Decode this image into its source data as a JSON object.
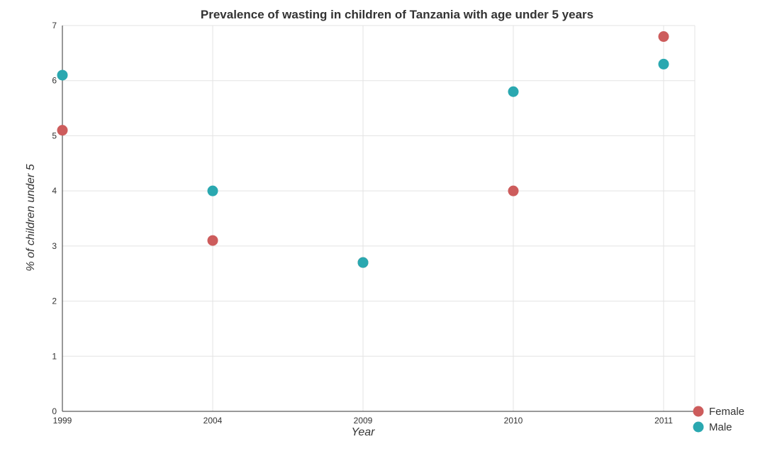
{
  "chart_data": {
    "type": "scatter",
    "title": "Prevalence of wasting in children of Tanzania with age under 5 years",
    "xlabel": "Year",
    "ylabel": "% of children under 5",
    "categories": [
      "1999",
      "2004",
      "2009",
      "2010",
      "2011"
    ],
    "ylim": [
      0,
      7
    ],
    "yticks": [
      "0",
      "1",
      "2",
      "3",
      "4",
      "5",
      "6",
      "7"
    ],
    "grid": true,
    "legend_position": "bottom-right",
    "series": [
      {
        "name": "Female",
        "color": "#cd5c5c",
        "values": [
          5.1,
          3.1,
          2.7,
          4.0,
          6.8
        ]
      },
      {
        "name": "Male",
        "color": "#2aa8b0",
        "values": [
          6.1,
          4.0,
          2.7,
          5.8,
          6.3
        ]
      }
    ]
  }
}
